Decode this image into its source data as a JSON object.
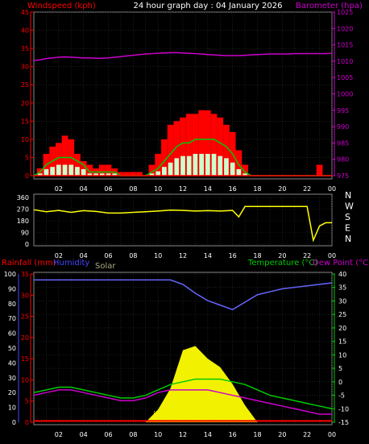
{
  "header": {
    "title": "24 hour graph day : 04 January 2026",
    "left_label": "Windspeed (kph)",
    "right_label": "Barometer (hpa)"
  },
  "colors": {
    "wind": "#ff0000",
    "gust_bars": "#ffffff",
    "avg_wind": "#00cc00",
    "wind_light": "#ccffcc",
    "baro": "#cc00cc",
    "dir": "#ffff00",
    "rain": "#ff0000",
    "humidity": "#6666ff",
    "solar": "#ffff00",
    "temp": "#00cc00",
    "dew": "#cc00cc",
    "axis_red": "#ff0000",
    "axis_blue": "#4444ff",
    "axis_green": "#00cc00",
    "grid": "#555555"
  },
  "x_ticks": [
    "02",
    "04",
    "06",
    "08",
    "10",
    "12",
    "14",
    "16",
    "18",
    "20",
    "22",
    "00"
  ],
  "chart_data": [
    {
      "type": "bar",
      "name_in_ui": "wind-chart",
      "y_left_ticks": [
        "0",
        "5",
        "10",
        "15",
        "20",
        "25",
        "30",
        "35",
        "40",
        "45"
      ],
      "y_left_range": [
        0,
        45
      ],
      "y_right_ticks": [
        "975",
        "980",
        "985",
        "990",
        "995",
        "1000",
        "1005",
        "1010",
        "1015",
        "1020",
        "1025"
      ],
      "y_right_range": [
        975,
        1025
      ],
      "x_hours": [
        0,
        0.5,
        1,
        1.5,
        2,
        2.5,
        3,
        3.5,
        4,
        4.5,
        5,
        5.5,
        6,
        6.5,
        7,
        7.5,
        8,
        8.5,
        9,
        9.5,
        10,
        10.5,
        11,
        11.5,
        12,
        12.5,
        13,
        13.5,
        14,
        14.5,
        15,
        15.5,
        16,
        16.5,
        17,
        17.5,
        18,
        18.5,
        19,
        19.5,
        20,
        20.5,
        21,
        21.5,
        22,
        22.5,
        23,
        23.5,
        24
      ],
      "series": [
        {
          "name": "Windspeed (kph)",
          "values": [
            0,
            2,
            6,
            8,
            9,
            11,
            10,
            6,
            4,
            3,
            2,
            3,
            3,
            2,
            1,
            1,
            1,
            1,
            0,
            3,
            6,
            10,
            14,
            15,
            16,
            17,
            17,
            18,
            18,
            17,
            16,
            14,
            12,
            7,
            3,
            0,
            0,
            0,
            0,
            0,
            0,
            0,
            0,
            0,
            0,
            0,
            3,
            0,
            0
          ]
        },
        {
          "name": "Average wind",
          "values": [
            0,
            1,
            3,
            4,
            5,
            5,
            5,
            4,
            3,
            1,
            1,
            1,
            1,
            1,
            0,
            0,
            0,
            0,
            0,
            1,
            2,
            4,
            6,
            8,
            9,
            9,
            10,
            10,
            10,
            10,
            9,
            8,
            6,
            3,
            1,
            0,
            0,
            0,
            0,
            0,
            0,
            0,
            0,
            0,
            0,
            0,
            0,
            0,
            0
          ]
        },
        {
          "name": "Barometer (hpa)",
          "values": [
            1010.2,
            1010.4,
            1010.8,
            1011.0,
            1011.2,
            1011.3,
            1011.2,
            1011.1,
            1011.0,
            1011.0,
            1010.9,
            1010.9,
            1011.0,
            1011.2,
            1011.4,
            1011.6,
            1011.8,
            1012.0,
            1012.2,
            1012.3,
            1012.4,
            1012.5,
            1012.6,
            1012.6,
            1012.5,
            1012.4,
            1012.3,
            1012.2,
            1012.0,
            1011.9,
            1011.8,
            1011.7,
            1011.7,
            1011.7,
            1011.8,
            1011.9,
            1012.0,
            1012.1,
            1012.2,
            1012.2,
            1012.2,
            1012.2,
            1012.3,
            1012.3,
            1012.3,
            1012.3,
            1012.3,
            1012.3,
            1012.4
          ]
        }
      ]
    },
    {
      "type": "line",
      "name_in_ui": "wind-direction-chart",
      "y_left_ticks": [
        "0",
        "90",
        "180",
        "270",
        "360"
      ],
      "y_left_range": [
        0,
        360
      ],
      "y_right_ticks": [
        "N",
        "W",
        "S",
        "E",
        "N"
      ],
      "x_hours": [
        0,
        1,
        2,
        3,
        4,
        5,
        6,
        7,
        8,
        9,
        10,
        11,
        12,
        13,
        14,
        15,
        16,
        16.5,
        17,
        18,
        19,
        20,
        21,
        22,
        22.5,
        23,
        23.5,
        24
      ],
      "values": [
        265,
        250,
        260,
        245,
        258,
        252,
        240,
        240,
        245,
        250,
        255,
        262,
        260,
        255,
        258,
        255,
        260,
        210,
        290,
        290,
        290,
        290,
        290,
        290,
        30,
        140,
        165,
        165
      ]
    },
    {
      "type": "line",
      "name_in_ui": "weather-chart",
      "labels": {
        "rain": "Rainfall (mm)",
        "humidity": "Humidity",
        "solar": "Solar",
        "temp": "Temperature (°C)",
        "dew": "Dew Point (°C)"
      },
      "y_rain_ticks": [
        "0",
        "5",
        "10",
        "15",
        "20",
        "25",
        "30",
        "35"
      ],
      "y_rain_range": [
        0,
        35
      ],
      "y_hum_ticks": [
        "0",
        "10",
        "20",
        "30",
        "40",
        "50",
        "60",
        "70",
        "80",
        "90",
        "100"
      ],
      "y_hum_range": [
        0,
        100
      ],
      "y_temp_ticks": [
        "-15",
        "-10",
        "-5",
        "0",
        "5",
        "10",
        "15",
        "20",
        "25",
        "30",
        "35",
        "40"
      ],
      "y_temp_range": [
        -15,
        40
      ],
      "x_hours": [
        0,
        1,
        2,
        3,
        4,
        5,
        6,
        7,
        8,
        9,
        10,
        11,
        12,
        13,
        14,
        15,
        16,
        17,
        18,
        19,
        20,
        21,
        22,
        23,
        24
      ],
      "series": [
        {
          "name": "Humidity",
          "values": [
            96,
            96,
            96,
            96,
            96,
            96,
            96,
            96,
            96,
            96,
            96,
            96,
            93,
            87,
            82,
            79,
            76,
            81,
            86,
            88,
            90,
            91,
            92,
            93,
            94
          ]
        },
        {
          "name": "Temperature (°C)",
          "values": [
            -4,
            -3,
            -2,
            -2,
            -3,
            -4,
            -5,
            -6,
            -6,
            -5,
            -3,
            -1,
            0,
            1,
            1,
            1,
            0,
            -1,
            -3,
            -5,
            -6,
            -7,
            -8,
            -9,
            -10
          ]
        },
        {
          "name": "Dew Point (°C)",
          "values": [
            -5,
            -4,
            -3,
            -3,
            -4,
            -5,
            -6,
            -7,
            -7,
            -6,
            -4,
            -3,
            -3,
            -3,
            -3,
            -4,
            -5,
            -6,
            -7,
            -8,
            -9,
            -10,
            -11,
            -12,
            -12
          ]
        },
        {
          "name": "Solar",
          "values": [
            0,
            0,
            0,
            0,
            0,
            0,
            0,
            0,
            0,
            0,
            3,
            8,
            17,
            18,
            15,
            13,
            9,
            4,
            0,
            0,
            0,
            0,
            0,
            0,
            0
          ]
        },
        {
          "name": "Rainfall (mm)",
          "values": [
            0.3,
            0.3,
            0.3,
            0.3,
            0.3,
            0.3,
            0.3,
            0.3,
            0.3,
            0.3,
            0.3,
            0.3,
            0.3,
            0.3,
            0.3,
            0.3,
            0.3,
            0.3,
            0.3,
            0.3,
            0.3,
            0.3,
            0.3,
            0.3,
            0.3
          ]
        }
      ]
    }
  ]
}
